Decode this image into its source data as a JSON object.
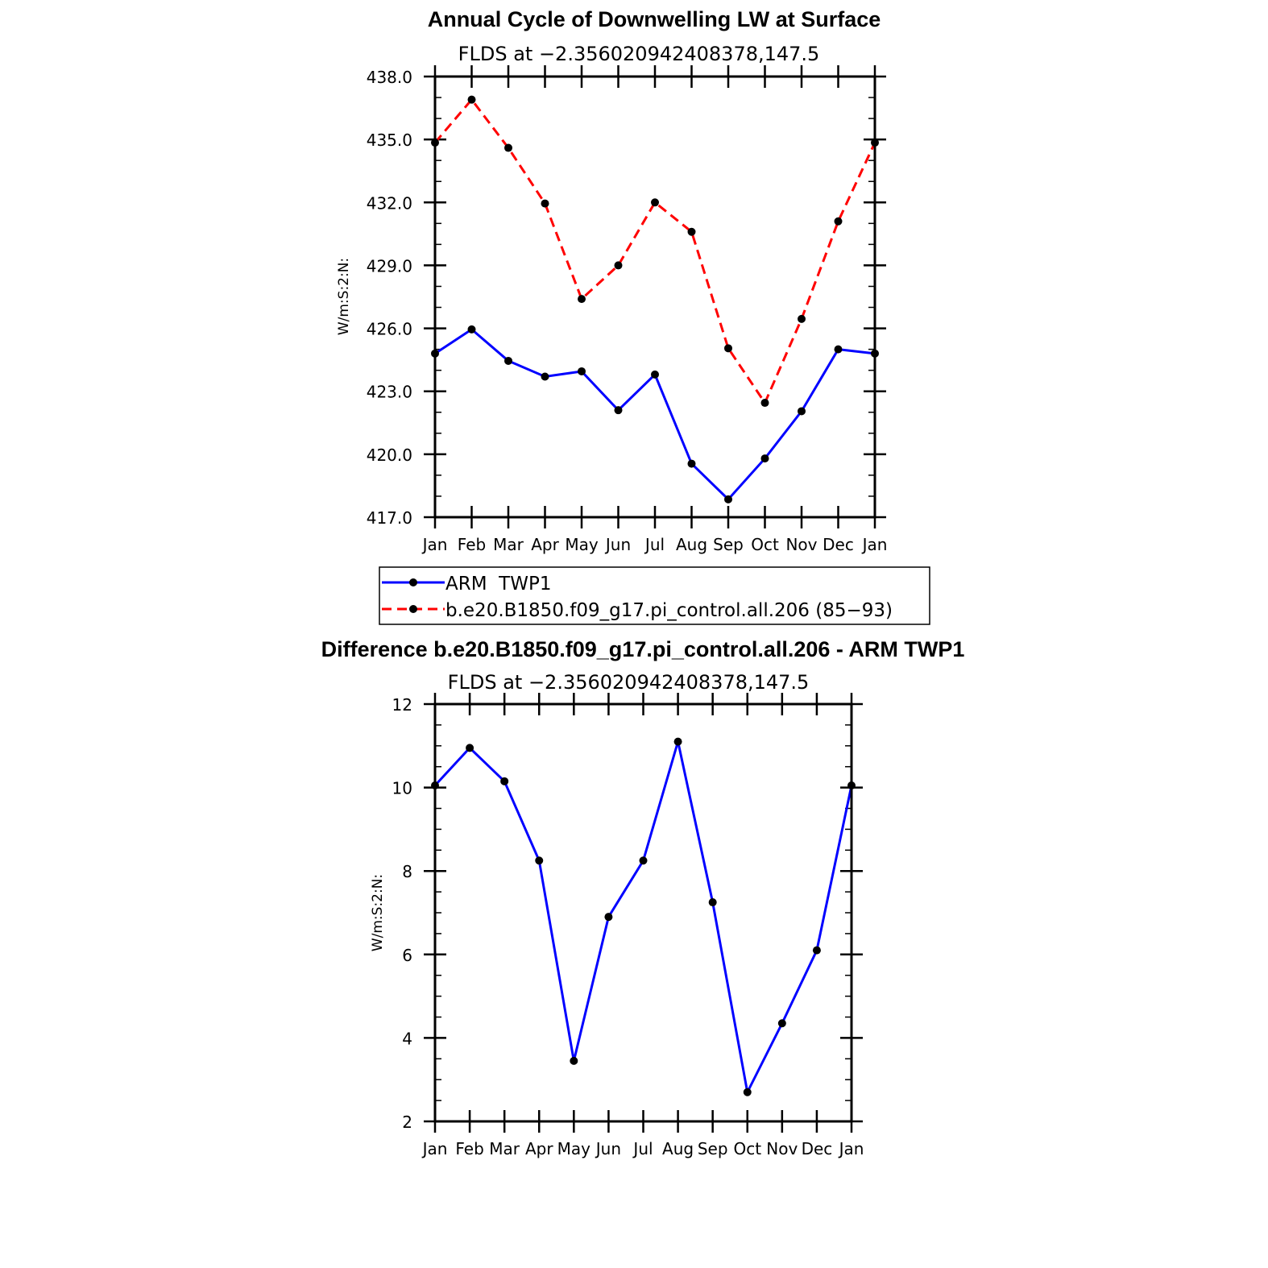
{
  "chart_data": [
    {
      "type": "line",
      "title": "Annual Cycle of Downwelling LW at Surface",
      "subtitle": "FLDS at −2.356020942408378,147.5",
      "ylabel": "W/m:S:2:N:",
      "ylim": [
        417.0,
        438.0
      ],
      "yticks": [
        "417.0",
        "420.0",
        "423.0",
        "426.0",
        "429.0",
        "432.0",
        "435.0",
        "438.0"
      ],
      "categories": [
        "Jan",
        "Feb",
        "Mar",
        "Apr",
        "May",
        "Jun",
        "Jul",
        "Aug",
        "Sep",
        "Oct",
        "Nov",
        "Dec",
        "Jan"
      ],
      "series": [
        {
          "name": "ARM  TWP1",
          "color": "#0000ff",
          "dash": "solid",
          "values": [
            424.8,
            425.95,
            424.45,
            423.7,
            423.95,
            422.1,
            423.8,
            419.55,
            417.85,
            419.8,
            422.05,
            425.0,
            424.8
          ]
        },
        {
          "name": "b.e20.B1850.f09_g17.pi_control.all.206 (85−93)",
          "color": "#ff0000",
          "dash": "dashed",
          "values": [
            434.85,
            436.9,
            434.6,
            431.95,
            427.4,
            429.0,
            432.0,
            430.6,
            425.05,
            422.45,
            426.45,
            431.1,
            434.85
          ]
        }
      ],
      "legend": "below"
    },
    {
      "type": "line",
      "title": "Difference b.e20.B1850.f09_g17.pi_control.all.206 - ARM TWP1",
      "subtitle": "FLDS at −2.356020942408378,147.5",
      "ylabel": "W/m:S:2:N:",
      "ylim": [
        2,
        12
      ],
      "yticks": [
        "2",
        "4",
        "6",
        "8",
        "10",
        "12"
      ],
      "categories": [
        "Jan",
        "Feb",
        "Mar",
        "Apr",
        "May",
        "Jun",
        "Jul",
        "Aug",
        "Sep",
        "Oct",
        "Nov",
        "Dec",
        "Jan"
      ],
      "series": [
        {
          "color": "#0000ff",
          "dash": "solid",
          "values": [
            10.05,
            10.95,
            10.15,
            8.25,
            3.45,
            6.9,
            8.25,
            11.1,
            7.25,
            2.7,
            4.35,
            6.1,
            10.05
          ]
        }
      ]
    }
  ]
}
